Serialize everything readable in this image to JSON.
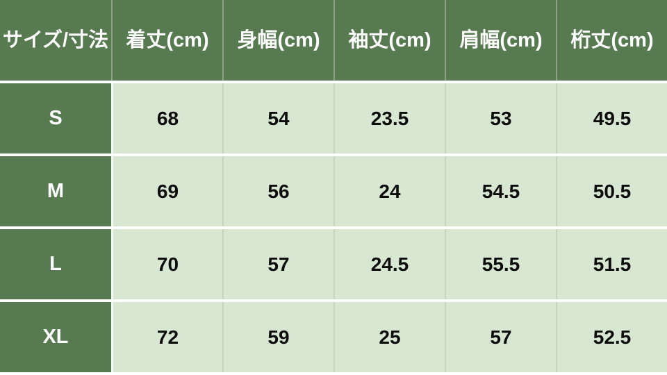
{
  "table": {
    "columns": [
      "サイズ/寸法",
      "着丈(cm)",
      "身幅(cm)",
      "袖丈(cm)",
      "肩幅(cm)",
      "桁丈(cm)"
    ],
    "rows": [
      {
        "size": "S",
        "values": [
          "68",
          "54",
          "23.5",
          "53",
          "49.5"
        ]
      },
      {
        "size": "M",
        "values": [
          "69",
          "56",
          "24",
          "54.5",
          "50.5"
        ]
      },
      {
        "size": "L",
        "values": [
          "70",
          "57",
          "24.5",
          "55.5",
          "51.5"
        ]
      },
      {
        "size": "XL",
        "values": [
          "72",
          "59",
          "25",
          "57",
          "52.5"
        ]
      }
    ],
    "colors": {
      "header_bg": "#577a51",
      "cell_bg": "#d8e7d2",
      "header_text": "#ffffff",
      "cell_text": "#0d0d0d",
      "separator": "#ffffff"
    }
  },
  "chart_data": {
    "type": "table",
    "title": "サイズ/寸法 (size chart)",
    "columns": [
      "サイズ/寸法",
      "着丈(cm)",
      "身幅(cm)",
      "袖丈(cm)",
      "肩幅(cm)",
      "桁丈(cm)"
    ],
    "rows": [
      [
        "S",
        68,
        54,
        23.5,
        53,
        49.5
      ],
      [
        "M",
        69,
        56,
        24,
        54.5,
        50.5
      ],
      [
        "L",
        70,
        57,
        24.5,
        55.5,
        51.5
      ],
      [
        "XL",
        72,
        59,
        25,
        57,
        52.5
      ]
    ],
    "layout": {
      "header_row": true,
      "header_column": true,
      "grid": true
    }
  }
}
